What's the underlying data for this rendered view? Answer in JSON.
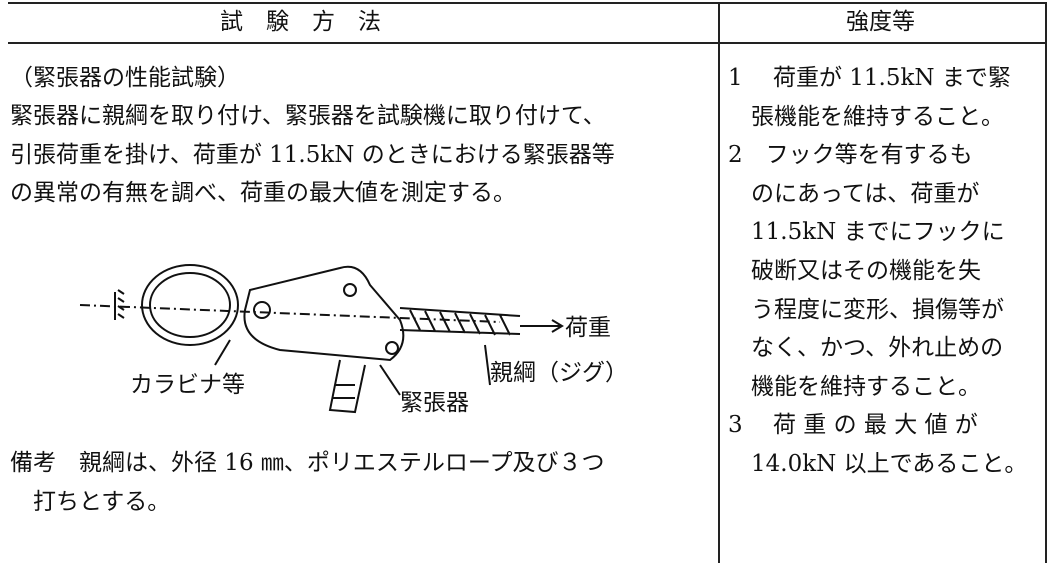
{
  "header": {
    "method": "試　験　方　法",
    "strength": "強度等"
  },
  "method": {
    "heading": "（緊張器の性能試験）",
    "lines": [
      "緊張器に親綱を取り付け、緊張器を試験機に取り付けて、",
      "引張荷重を掛け、荷重が 11.5kN のときにおける緊張器等",
      "の異常の有無を調べ、荷重の最大値を測定する。"
    ],
    "figure": {
      "load": "荷重",
      "rope": "親綱（ジグ）",
      "carabiner": "カラビナ等",
      "tensioner": "緊張器"
    },
    "remark": [
      "備考　親綱は、外径 16 ㎜、ポリエステルロープ及び３つ",
      "　打ちとする。"
    ]
  },
  "strength": {
    "lines": [
      "1　 荷重が 11.5kN まで緊",
      "　張機能を維持すること。",
      "2　フック等を有するも",
      "　のにあっては、荷重が",
      "　11.5kN までにフックに",
      "　破断又はその機能を失",
      "　う程度に変形、損傷等が",
      "　なく、かつ、外れ止めの",
      "　機能を維持すること。",
      "3　 荷 重 の 最 大 値 が",
      "　14.0kN 以上であること。"
    ]
  }
}
